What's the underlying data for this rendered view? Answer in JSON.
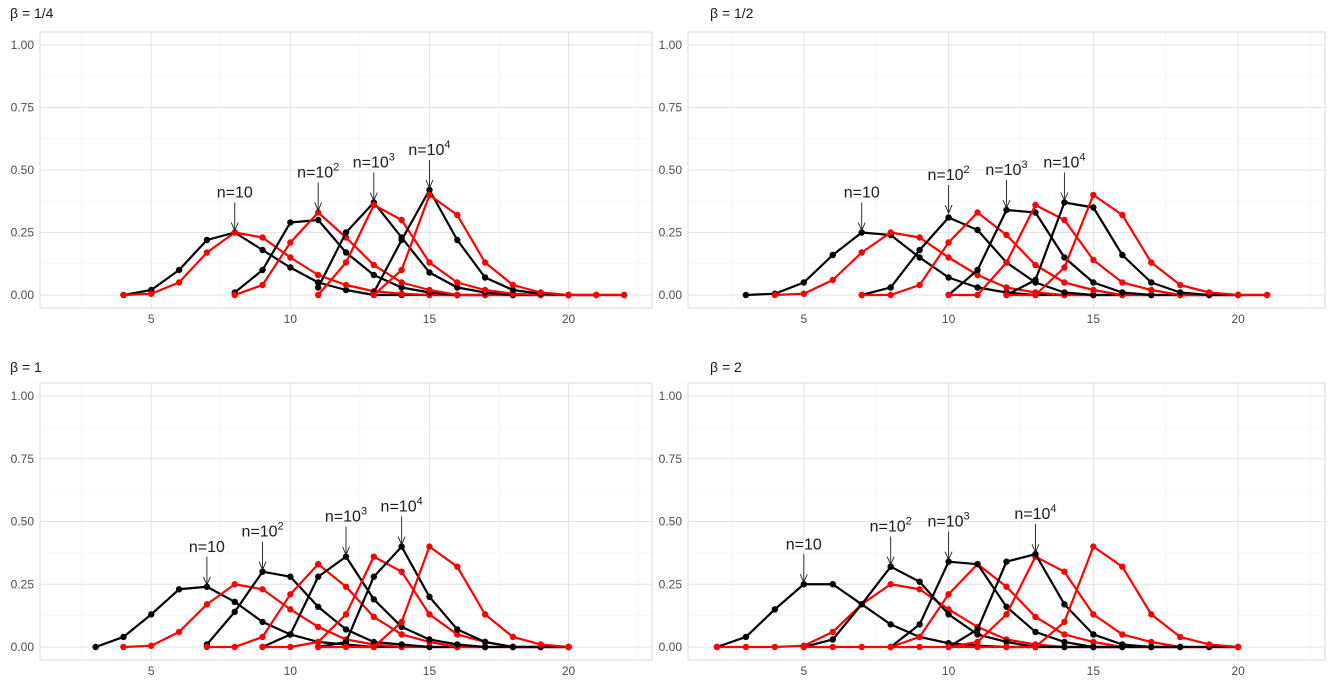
{
  "chart_data": [
    {
      "type": "line",
      "title": "β = 1/4",
      "xlim": [
        1,
        23
      ],
      "ylim": [
        0,
        1
      ],
      "x_ticks": [
        5,
        10,
        15,
        20
      ],
      "y_ticks": [
        "0.00",
        "0.25",
        "0.50",
        "0.75",
        "1.00"
      ],
      "grid": true,
      "colors": {
        "black": "#000000",
        "red": "#ff0000"
      },
      "series": [
        {
          "color": "black",
          "x": [
            4,
            5,
            6,
            7,
            8,
            9,
            10,
            11,
            12,
            13,
            14,
            15,
            16
          ],
          "y": [
            0.0,
            0.02,
            0.1,
            0.22,
            0.25,
            0.18,
            0.11,
            0.05,
            0.02,
            0.0,
            0.0,
            0.0,
            0.0
          ]
        },
        {
          "color": "red",
          "x": [
            4,
            5,
            6,
            7,
            8,
            9,
            10,
            11,
            12,
            13,
            14,
            15,
            16,
            17
          ],
          "y": [
            0.0,
            0.005,
            0.05,
            0.17,
            0.25,
            0.23,
            0.15,
            0.08,
            0.04,
            0.015,
            0.005,
            0.0,
            0.0,
            0.0
          ]
        },
        {
          "color": "black",
          "x": [
            8,
            9,
            10,
            11,
            12,
            13,
            14,
            15,
            16,
            17,
            18
          ],
          "y": [
            0.01,
            0.1,
            0.29,
            0.3,
            0.17,
            0.08,
            0.03,
            0.01,
            0.0,
            0.0,
            0.0
          ]
        },
        {
          "color": "red",
          "x": [
            8,
            9,
            10,
            11,
            12,
            13,
            14,
            15,
            16,
            17,
            18,
            19
          ],
          "y": [
            0.0,
            0.04,
            0.21,
            0.33,
            0.23,
            0.12,
            0.05,
            0.02,
            0.0,
            0.0,
            0.0,
            0.0
          ]
        },
        {
          "color": "black",
          "x": [
            11,
            12,
            13,
            14,
            15,
            16,
            17,
            18,
            19,
            20
          ],
          "y": [
            0.03,
            0.25,
            0.37,
            0.23,
            0.09,
            0.03,
            0.01,
            0.0,
            0.0,
            0.0
          ]
        },
        {
          "color": "red",
          "x": [
            11,
            12,
            13,
            14,
            15,
            16,
            17,
            18,
            19,
            20,
            21
          ],
          "y": [
            0.0,
            0.13,
            0.36,
            0.3,
            0.13,
            0.05,
            0.02,
            0.005,
            0.0,
            0.0,
            0.0
          ]
        },
        {
          "color": "black",
          "x": [
            13,
            14,
            15,
            16,
            17,
            18,
            19,
            20,
            21,
            22
          ],
          "y": [
            0.01,
            0.22,
            0.42,
            0.22,
            0.07,
            0.02,
            0.005,
            0.0,
            0.0,
            0.0
          ]
        },
        {
          "color": "red",
          "x": [
            13,
            14,
            15,
            16,
            17,
            18,
            19,
            20,
            21,
            22
          ],
          "y": [
            0.0,
            0.1,
            0.4,
            0.32,
            0.13,
            0.04,
            0.01,
            0.0,
            0.0,
            0.0
          ]
        }
      ],
      "annotations": [
        {
          "base": "n=10",
          "exp": "",
          "x": 8,
          "y": 0.25
        },
        {
          "base": "n=10",
          "exp": "2",
          "x": 11,
          "y": 0.33
        },
        {
          "base": "n=10",
          "exp": "3",
          "x": 13,
          "y": 0.37
        },
        {
          "base": "n=10",
          "exp": "4",
          "x": 15,
          "y": 0.42
        }
      ]
    },
    {
      "type": "line",
      "title": "β = 1/2",
      "xlim": [
        1,
        23
      ],
      "ylim": [
        0,
        1
      ],
      "x_ticks": [
        5,
        10,
        15,
        20
      ],
      "y_ticks": [
        "0.00",
        "0.25",
        "0.50",
        "0.75",
        "1.00"
      ],
      "grid": true,
      "colors": {
        "black": "#000000",
        "red": "#ff0000"
      },
      "series": [
        {
          "color": "black",
          "x": [
            3,
            4,
            5,
            6,
            7,
            8,
            9,
            10,
            11,
            12,
            13,
            14,
            15
          ],
          "y": [
            0.0,
            0.005,
            0.05,
            0.16,
            0.25,
            0.24,
            0.15,
            0.07,
            0.03,
            0.01,
            0.0,
            0.0,
            0.0
          ]
        },
        {
          "color": "red",
          "x": [
            4,
            5,
            6,
            7,
            8,
            9,
            10,
            11,
            12,
            13,
            14,
            15,
            16
          ],
          "y": [
            0.0,
            0.005,
            0.06,
            0.17,
            0.25,
            0.23,
            0.15,
            0.08,
            0.03,
            0.01,
            0.0,
            0.0,
            0.0
          ]
        },
        {
          "color": "black",
          "x": [
            7,
            8,
            9,
            10,
            11,
            12,
            13,
            14,
            15,
            16,
            17
          ],
          "y": [
            0.0,
            0.03,
            0.18,
            0.31,
            0.26,
            0.13,
            0.05,
            0.01,
            0.0,
            0.0,
            0.0
          ]
        },
        {
          "color": "red",
          "x": [
            7,
            8,
            9,
            10,
            11,
            12,
            13,
            14,
            15,
            16,
            17,
            18,
            19
          ],
          "y": [
            0.0,
            0.0,
            0.04,
            0.21,
            0.33,
            0.24,
            0.12,
            0.05,
            0.02,
            0.0,
            0.0,
            0.0,
            0.0
          ]
        },
        {
          "color": "black",
          "x": [
            10,
            11,
            12,
            13,
            14,
            15,
            16,
            17,
            18,
            19,
            20
          ],
          "y": [
            0.0,
            0.1,
            0.34,
            0.33,
            0.15,
            0.05,
            0.01,
            0.0,
            0.0,
            0.0,
            0.0
          ]
        },
        {
          "color": "red",
          "x": [
            10,
            11,
            12,
            13,
            14,
            15,
            16,
            17,
            18,
            19,
            20
          ],
          "y": [
            0.0,
            0.0,
            0.13,
            0.36,
            0.3,
            0.14,
            0.05,
            0.02,
            0.0,
            0.0,
            0.0
          ]
        },
        {
          "color": "black",
          "x": [
            12,
            13,
            14,
            15,
            16,
            17,
            18,
            19,
            20,
            21
          ],
          "y": [
            0.0,
            0.06,
            0.37,
            0.35,
            0.16,
            0.05,
            0.01,
            0.0,
            0.0,
            0.0
          ]
        },
        {
          "color": "red",
          "x": [
            12,
            13,
            14,
            15,
            16,
            17,
            18,
            19,
            20,
            21
          ],
          "y": [
            0.0,
            0.0,
            0.11,
            0.4,
            0.32,
            0.13,
            0.04,
            0.01,
            0.0,
            0.0
          ]
        }
      ],
      "annotations": [
        {
          "base": "n=10",
          "exp": "",
          "x": 7,
          "y": 0.25
        },
        {
          "base": "n=10",
          "exp": "2",
          "x": 10,
          "y": 0.32
        },
        {
          "base": "n=10",
          "exp": "3",
          "x": 12,
          "y": 0.34
        },
        {
          "base": "n=10",
          "exp": "4",
          "x": 14,
          "y": 0.37
        }
      ]
    },
    {
      "type": "line",
      "title": "β = 1",
      "xlim": [
        1,
        23
      ],
      "ylim": [
        0,
        1
      ],
      "x_ticks": [
        5,
        10,
        15,
        20
      ],
      "y_ticks": [
        "0.00",
        "0.25",
        "0.50",
        "0.75",
        "1.00"
      ],
      "grid": true,
      "colors": {
        "black": "#000000",
        "red": "#ff0000"
      },
      "series": [
        {
          "color": "black",
          "x": [
            3,
            4,
            5,
            6,
            7,
            8,
            9,
            10,
            11,
            12,
            13,
            14
          ],
          "y": [
            0.0,
            0.04,
            0.13,
            0.23,
            0.24,
            0.18,
            0.1,
            0.05,
            0.02,
            0.01,
            0.0,
            0.0
          ]
        },
        {
          "color": "red",
          "x": [
            4,
            5,
            6,
            7,
            8,
            9,
            10,
            11,
            12,
            13,
            14,
            15,
            16
          ],
          "y": [
            0.0,
            0.005,
            0.06,
            0.17,
            0.25,
            0.23,
            0.15,
            0.08,
            0.03,
            0.01,
            0.0,
            0.0,
            0.0
          ]
        },
        {
          "color": "black",
          "x": [
            7,
            8,
            9,
            10,
            11,
            12,
            13,
            14,
            15,
            16,
            17
          ],
          "y": [
            0.01,
            0.14,
            0.3,
            0.28,
            0.16,
            0.07,
            0.02,
            0.01,
            0.0,
            0.0,
            0.0
          ]
        },
        {
          "color": "red",
          "x": [
            7,
            8,
            9,
            10,
            11,
            12,
            13,
            14,
            15,
            16,
            17,
            18,
            19
          ],
          "y": [
            0.0,
            0.0,
            0.04,
            0.21,
            0.33,
            0.24,
            0.12,
            0.05,
            0.02,
            0.0,
            0.0,
            0.0,
            0.0
          ]
        },
        {
          "color": "black",
          "x": [
            9,
            10,
            11,
            12,
            13,
            14,
            15,
            16,
            17,
            18,
            19,
            20
          ],
          "y": [
            0.0,
            0.05,
            0.28,
            0.36,
            0.19,
            0.08,
            0.03,
            0.01,
            0.0,
            0.0,
            0.0,
            0.0
          ]
        },
        {
          "color": "red",
          "x": [
            9,
            10,
            11,
            12,
            13,
            14,
            15,
            16,
            17,
            18,
            19,
            20
          ],
          "y": [
            0.0,
            0.0,
            0.02,
            0.13,
            0.36,
            0.3,
            0.13,
            0.05,
            0.02,
            0.0,
            0.0,
            0.0
          ]
        },
        {
          "color": "black",
          "x": [
            11,
            12,
            13,
            14,
            15,
            16,
            17,
            18,
            19,
            20
          ],
          "y": [
            0.0,
            0.02,
            0.28,
            0.4,
            0.2,
            0.07,
            0.02,
            0.0,
            0.0,
            0.0
          ]
        },
        {
          "color": "red",
          "x": [
            11,
            12,
            13,
            14,
            15,
            16,
            17,
            18,
            19,
            20
          ],
          "y": [
            0.0,
            0.0,
            0.0,
            0.1,
            0.4,
            0.32,
            0.13,
            0.04,
            0.01,
            0.0
          ]
        }
      ],
      "annotations": [
        {
          "base": "n=10",
          "exp": "",
          "x": 7,
          "y": 0.24
        },
        {
          "base": "n=10",
          "exp": "2",
          "x": 9,
          "y": 0.3
        },
        {
          "base": "n=10",
          "exp": "3",
          "x": 12,
          "y": 0.36
        },
        {
          "base": "n=10",
          "exp": "4",
          "x": 14,
          "y": 0.4
        }
      ]
    },
    {
      "type": "line",
      "title": "β = 2",
      "xlim": [
        1,
        23
      ],
      "ylim": [
        0,
        1
      ],
      "x_ticks": [
        5,
        10,
        15,
        20
      ],
      "y_ticks": [
        "0.00",
        "0.25",
        "0.50",
        "0.75",
        "1.00"
      ],
      "grid": true,
      "colors": {
        "black": "#000000",
        "red": "#ff0000"
      },
      "series": [
        {
          "color": "black",
          "x": [
            2,
            3,
            4,
            5,
            6,
            7,
            8,
            9,
            10,
            11,
            12,
            13
          ],
          "y": [
            0.0,
            0.04,
            0.15,
            0.25,
            0.25,
            0.17,
            0.09,
            0.04,
            0.015,
            0.005,
            0.0,
            0.0
          ]
        },
        {
          "color": "red",
          "x": [
            2,
            3,
            4,
            5,
            6,
            7,
            8,
            9,
            10,
            11,
            12,
            13,
            14,
            15,
            16
          ],
          "y": [
            0.0,
            0.0,
            0.0,
            0.005,
            0.06,
            0.17,
            0.25,
            0.23,
            0.15,
            0.08,
            0.03,
            0.01,
            0.0,
            0.0,
            0.0
          ]
        },
        {
          "color": "black",
          "x": [
            5,
            6,
            7,
            8,
            9,
            10,
            11,
            12,
            13,
            14,
            15,
            16
          ],
          "y": [
            0.0,
            0.03,
            0.17,
            0.32,
            0.26,
            0.13,
            0.05,
            0.02,
            0.0,
            0.0,
            0.0,
            0.0
          ]
        },
        {
          "color": "red",
          "x": [
            5,
            6,
            7,
            8,
            9,
            10,
            11,
            12,
            13,
            14,
            15,
            16,
            17,
            18,
            19
          ],
          "y": [
            0.0,
            0.0,
            0.0,
            0.0,
            0.04,
            0.21,
            0.33,
            0.24,
            0.12,
            0.05,
            0.02,
            0.0,
            0.0,
            0.0,
            0.0
          ]
        },
        {
          "color": "black",
          "x": [
            8,
            9,
            10,
            11,
            12,
            13,
            14,
            15,
            16,
            17,
            18
          ],
          "y": [
            0.0,
            0.09,
            0.34,
            0.33,
            0.16,
            0.06,
            0.02,
            0.0,
            0.0,
            0.0,
            0.0
          ]
        },
        {
          "color": "red",
          "x": [
            8,
            9,
            10,
            11,
            12,
            13,
            14,
            15,
            16,
            17,
            18,
            19,
            20
          ],
          "y": [
            0.0,
            0.0,
            0.0,
            0.02,
            0.13,
            0.36,
            0.3,
            0.13,
            0.05,
            0.02,
            0.0,
            0.0,
            0.0
          ]
        },
        {
          "color": "black",
          "x": [
            10,
            11,
            12,
            13,
            14,
            15,
            16,
            17,
            18,
            19,
            20
          ],
          "y": [
            0.0,
            0.07,
            0.34,
            0.37,
            0.17,
            0.05,
            0.01,
            0.0,
            0.0,
            0.0,
            0.0
          ]
        },
        {
          "color": "red",
          "x": [
            10,
            11,
            12,
            13,
            14,
            15,
            16,
            17,
            18,
            19,
            20
          ],
          "y": [
            0.0,
            0.0,
            0.0,
            0.0,
            0.1,
            0.4,
            0.32,
            0.13,
            0.04,
            0.01,
            0.0
          ]
        }
      ],
      "annotations": [
        {
          "base": "n=10",
          "exp": "",
          "x": 5,
          "y": 0.25
        },
        {
          "base": "n=10",
          "exp": "2",
          "x": 8,
          "y": 0.32
        },
        {
          "base": "n=10",
          "exp": "3",
          "x": 10,
          "y": 0.34
        },
        {
          "base": "n=10",
          "exp": "4",
          "x": 13,
          "y": 0.37
        }
      ]
    }
  ]
}
